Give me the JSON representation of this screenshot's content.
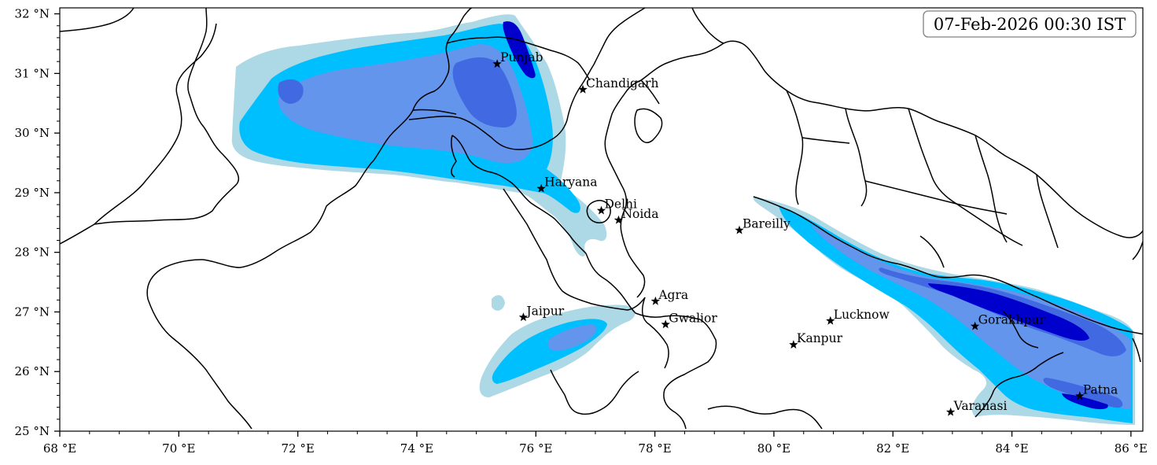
{
  "timestamp": "07-Feb-2026 00:30 IST",
  "axes": {
    "x_ticks": [
      "68 °E",
      "70 °E",
      "72 °E",
      "74 °E",
      "76 °E",
      "78 °E",
      "80 °E",
      "82 °E",
      "84 °E",
      "86 °E"
    ],
    "y_ticks": [
      "32 °N",
      "31 °N",
      "30 °N",
      "29 °N",
      "28 °N",
      "27 °N",
      "26 °N",
      "25 °N"
    ],
    "lon_range": [
      68,
      86.2
    ],
    "lat_range": [
      25,
      32.1
    ]
  },
  "cities": [
    {
      "name": "Punjab",
      "lon": 75.35,
      "lat": 31.16
    },
    {
      "name": "Chandigarh",
      "lon": 76.79,
      "lat": 30.73
    },
    {
      "name": "Haryana",
      "lon": 76.09,
      "lat": 29.07
    },
    {
      "name": "Delhi",
      "lon": 77.1,
      "lat": 28.7
    },
    {
      "name": "Noida",
      "lon": 77.39,
      "lat": 28.54
    },
    {
      "name": "Bareilly",
      "lon": 79.42,
      "lat": 28.37
    },
    {
      "name": "Agra",
      "lon": 78.01,
      "lat": 27.18
    },
    {
      "name": "Jaipur",
      "lon": 75.79,
      "lat": 26.91
    },
    {
      "name": "Gwalior",
      "lon": 78.18,
      "lat": 26.79
    },
    {
      "name": "Lucknow",
      "lon": 80.95,
      "lat": 26.85
    },
    {
      "name": "Kanpur",
      "lon": 80.33,
      "lat": 26.45
    },
    {
      "name": "Gorakhpur",
      "lon": 83.38,
      "lat": 26.76
    },
    {
      "name": "Varanasi",
      "lon": 82.97,
      "lat": 25.32
    },
    {
      "name": "Patna",
      "lon": 85.14,
      "lat": 25.59
    }
  ],
  "colors": {
    "level1": "#add8e6",
    "level2": "#00bfff",
    "level3": "#6495ed",
    "level4": "#4169e1",
    "level5": "#0000cd"
  }
}
